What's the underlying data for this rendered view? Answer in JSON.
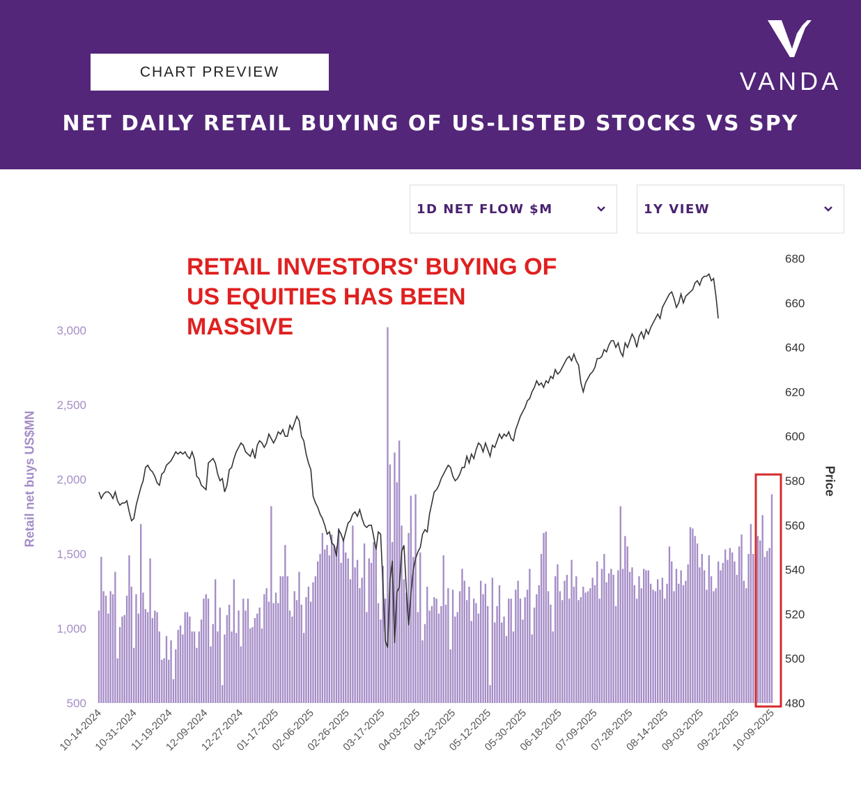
{
  "header": {
    "badge_label": "CHART PREVIEW",
    "brand": "VANDA",
    "title": "NET DAILY RETAIL BUYING OF US-LISTED STOCKS VS SPY"
  },
  "controls": {
    "metric_select": "1D NET FLOW $M",
    "range_select": "1Y VIEW"
  },
  "annotation_lines": [
    "RETAIL INVESTORS' BUYING OF",
    "US EQUITIES HAS BEEN",
    "MASSIVE"
  ],
  "colors": {
    "header_bg": "#532679",
    "bar": "#a48cc6",
    "line": "#333333",
    "annotation": "#e02020",
    "highlight_box": "#d42a2a"
  },
  "chart_data": {
    "type": "bar",
    "title": "NET DAILY RETAIL BUYING OF US-LISTED STOCKS VS SPY",
    "ylabel": "Retail net buys US$MN",
    "ylabel_right": "Price",
    "ylim": [
      500,
      3000
    ],
    "ylim_right": [
      480,
      680
    ],
    "y_ticks_left": [
      "500",
      "1,000",
      "1,500",
      "2,000",
      "2,500",
      "3,000"
    ],
    "y_ticks_right": [
      "480",
      "500",
      "520",
      "540",
      "560",
      "580",
      "600",
      "620",
      "640",
      "660",
      "680"
    ],
    "x_ticks": [
      "10-14-2024",
      "10-31-2024",
      "11-19-2024",
      "12-09-2024",
      "12-27-2024",
      "01-17-2025",
      "02-06-2025",
      "02-26-2025",
      "03-17-2025",
      "04-03-2025",
      "04-23-2025",
      "05-12-2025",
      "05-30-2025",
      "06-18-2025",
      "07-09-2025",
      "07-28-2025",
      "08-14-2025",
      "09-03-2025",
      "09-22-2025",
      "10-09-2025"
    ],
    "highlight": "last 7 trading days (box)",
    "series": [
      {
        "name": "Retail net buys US$MN",
        "type": "bar",
        "values": [
          1120,
          1480,
          1250,
          1220,
          1100,
          1250,
          1230,
          1380,
          800,
          1010,
          1080,
          1090,
          1220,
          1490,
          1280,
          870,
          1230,
          1100,
          1700,
          1240,
          1130,
          1110,
          1470,
          1070,
          1120,
          1110,
          980,
          790,
          800,
          950,
          790,
          920,
          660,
          860,
          990,
          1020,
          960,
          1110,
          1110,
          1080,
          980,
          980,
          870,
          980,
          1060,
          1200,
          1230,
          1200,
          880,
          1030,
          1330,
          980,
          1140,
          620,
          960,
          1090,
          1160,
          980,
          1330,
          970,
          1120,
          880,
          1200,
          1120,
          1200,
          1000,
          1010,
          1070,
          1100,
          1140,
          1000,
          1230,
          1270,
          1180,
          1820,
          1170,
          1240,
          1170,
          1350,
          1350,
          1560,
          1350,
          1120,
          1080,
          1250,
          1190,
          1380,
          1160,
          970,
          1210,
          1280,
          1180,
          1310,
          1350,
          1450,
          1500,
          1640,
          1530,
          1560,
          1490,
          1630,
          1560,
          1550,
          1670,
          1440,
          1590,
          1510,
          1470,
          1330,
          1690,
          1410,
          1460,
          1270,
          1340,
          1570,
          1110,
          1470,
          1440,
          1580,
          1530,
          1170,
          1060,
          1420,
          1200,
          3020,
          2100,
          1580,
          2180,
          1980,
          2260,
          1690,
          1330,
          1240,
          1640,
          1890,
          1480,
          1900,
          1110,
          1510,
          920,
          1030,
          1280,
          1120,
          1150,
          1210,
          1200,
          1100,
          1150,
          1490,
          1160,
          1270,
          860,
          1260,
          1080,
          1110,
          1250,
          1400,
          1320,
          1190,
          1280,
          1050,
          1200,
          1170,
          1100,
          1320,
          1230,
          1300,
          1150,
          620,
          1340,
          1040,
          1150,
          1290,
          1040,
          1080,
          950,
          1200,
          1200,
          980,
          1260,
          1320,
          1200,
          1060,
          1210,
          1260,
          1400,
          960,
          1140,
          1230,
          1290,
          1500,
          1640,
          1650,
          1250,
          1160,
          980,
          1350,
          1430,
          1250,
          1190,
          1320,
          1360,
          1200,
          1460,
          1280,
          1350,
          1190,
          1210,
          1280,
          1240,
          1250,
          1270,
          1340,
          1290,
          1450,
          1200,
          1400,
          1500,
          1310,
          1370,
          1400,
          1360,
          1150,
          1390,
          1820,
          1400,
          1620,
          1550,
          1380,
          1410,
          1290,
          1200,
          1350,
          1270,
          1400,
          1390,
          1390,
          1300,
          1260,
          1250,
          1330,
          1260,
          1340,
          1200,
          1300,
          1550,
          1450,
          1250,
          1400,
          1300,
          1390,
          1290,
          1320,
          1430,
          1680,
          1670,
          1620,
          1570,
          1410,
          1500,
          1390,
          1260,
          1490,
          1350,
          1250,
          1270,
          1450,
          1390,
          1440,
          1530,
          1460,
          1540,
          1510,
          1450,
          1360,
          1550,
          1630,
          1320,
          1270,
          1500,
          1700,
          1500,
          1450,
          1620,
          1590,
          1760,
          1480,
          1520,
          1540,
          1900
        ]
      },
      {
        "name": "SPY",
        "type": "line",
        "values": [
          575,
          572,
          574,
          575,
          575,
          574,
          572,
          575,
          571,
          569,
          570,
          570,
          571,
          566,
          562,
          563,
          569,
          573,
          577,
          580,
          586,
          587,
          585,
          584,
          582,
          579,
          578,
          583,
          584,
          587,
          588,
          589,
          591,
          593,
          592,
          593,
          592,
          593,
          591,
          590,
          593,
          590,
          582,
          581,
          578,
          577,
          576,
          588,
          589,
          590,
          588,
          583,
          580,
          581,
          575,
          578,
          585,
          586,
          590,
          593,
          595,
          597,
          596,
          593,
          592,
          591,
          594,
          590,
          596,
          598,
          597,
          595,
          597,
          601,
          599,
          597,
          599,
          602,
          601,
          603,
          600,
          600,
          605,
          603,
          606,
          609,
          607,
          600,
          598,
          592,
          588,
          585,
          573,
          570,
          568,
          565,
          563,
          560,
          556,
          557,
          552,
          551,
          546,
          558,
          556,
          553,
          557,
          561,
          562,
          565,
          566,
          564,
          567,
          563,
          560,
          559,
          560,
          560,
          555,
          549,
          557,
          556,
          533,
          508,
          505,
          535,
          544,
          507,
          530,
          532,
          548,
          551,
          532,
          515,
          529,
          540,
          545,
          548,
          550,
          556,
          558,
          557,
          565,
          570,
          575,
          576,
          578,
          581,
          583,
          585,
          587,
          586,
          582,
          580,
          581,
          583,
          586,
          586,
          591,
          588,
          592,
          590,
          594,
          597,
          596,
          593,
          597,
          594,
          591,
          596,
          595,
          598,
          601,
          599,
          601,
          600,
          602,
          599,
          598,
          603,
          606,
          609,
          611,
          613,
          616,
          617,
          620,
          622,
          625,
          623,
          624,
          622,
          625,
          624,
          627,
          626,
          630,
          628,
          629,
          631,
          633,
          635,
          636,
          634,
          637,
          634,
          632,
          624,
          620,
          624,
          626,
          628,
          629,
          631,
          635,
          635,
          636,
          639,
          638,
          641,
          643,
          643,
          640,
          642,
          638,
          636,
          642,
          640,
          643,
          646,
          644,
          640,
          645,
          647,
          644,
          648,
          646,
          649,
          651,
          653,
          655,
          653,
          658,
          660,
          662,
          664,
          665,
          662,
          658,
          660,
          664,
          660,
          663,
          664,
          665,
          666,
          669,
          670,
          668,
          671,
          672,
          672,
          673,
          670,
          671,
          663,
          653
        ]
      }
    ]
  }
}
